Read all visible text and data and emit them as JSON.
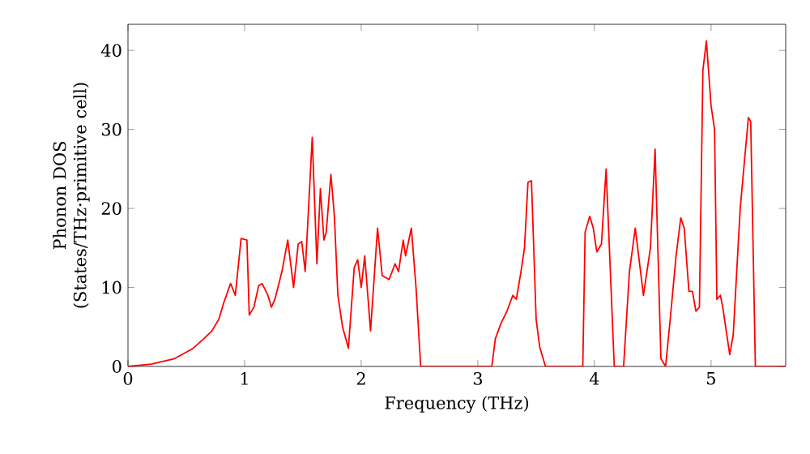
{
  "chart_data": {
    "type": "line",
    "xlabel": "Frequency (THz)",
    "ylabel": "Phonon DOS (States/THz·primitive cell)",
    "xlim": [
      0,
      5.64
    ],
    "ylim": [
      0,
      43.3
    ],
    "xticks": [
      0,
      1,
      2,
      3,
      4,
      5
    ],
    "yticks": [
      0,
      10,
      20,
      30,
      40
    ],
    "marker": "none",
    "line_style": "solid",
    "series": [
      {
        "color": "#ff0000",
        "x": [
          0,
          0.2,
          0.4,
          0.55,
          0.65,
          0.72,
          0.78,
          0.82,
          0.88,
          0.92,
          0.97,
          1.02,
          1.04,
          1.08,
          1.12,
          1.15,
          1.2,
          1.23,
          1.26,
          1.32,
          1.37,
          1.42,
          1.46,
          1.49,
          1.52,
          1.58,
          1.62,
          1.65,
          1.68,
          1.7,
          1.74,
          1.77,
          1.8,
          1.84,
          1.89,
          1.94,
          1.97,
          2.0,
          2.03,
          2.08,
          2.14,
          2.18,
          2.24,
          2.29,
          2.32,
          2.36,
          2.38,
          2.43,
          2.47,
          2.51,
          3.12,
          3.15,
          3.2,
          3.25,
          3.3,
          3.33,
          3.37,
          3.4,
          3.43,
          3.46,
          3.5,
          3.53,
          3.58,
          3.9,
          3.92,
          3.96,
          3.99,
          4.02,
          4.06,
          4.1,
          4.17,
          4.25,
          4.3,
          4.35,
          4.42,
          4.48,
          4.52,
          4.57,
          4.61,
          4.65,
          4.7,
          4.74,
          4.77,
          4.81,
          4.84,
          4.87,
          4.9,
          4.93,
          4.96,
          5.0,
          5.03,
          5.05,
          5.08,
          5.1,
          5.16,
          5.19,
          5.25,
          5.32,
          5.34,
          5.38,
          5.64
        ],
        "values": [
          0,
          0.3,
          1,
          2.2,
          3.5,
          4.5,
          6,
          8,
          10.5,
          9,
          16.2,
          16,
          6.5,
          7.5,
          10.2,
          10.5,
          9,
          7.5,
          8.5,
          12,
          16,
          10,
          15.5,
          15.8,
          12,
          29,
          13,
          22.5,
          16,
          17,
          24.3,
          19,
          9,
          5,
          2.3,
          12.5,
          13.5,
          10,
          14,
          4.5,
          17.5,
          11.5,
          11,
          13,
          12,
          16,
          14,
          17.5,
          10,
          0,
          0,
          3.5,
          5.5,
          7,
          9,
          8.5,
          12,
          15,
          23.3,
          23.5,
          6,
          2.5,
          0,
          0,
          17,
          19,
          17.5,
          14.5,
          15.5,
          25,
          0,
          0,
          12,
          17.5,
          9,
          15,
          27.5,
          1,
          0,
          6,
          14,
          18.8,
          17.5,
          9.5,
          9.5,
          7,
          7.5,
          37.5,
          41.2,
          33,
          30,
          8.5,
          9,
          7.5,
          1.5,
          4,
          20,
          31.5,
          31,
          0,
          0
        ]
      }
    ]
  }
}
